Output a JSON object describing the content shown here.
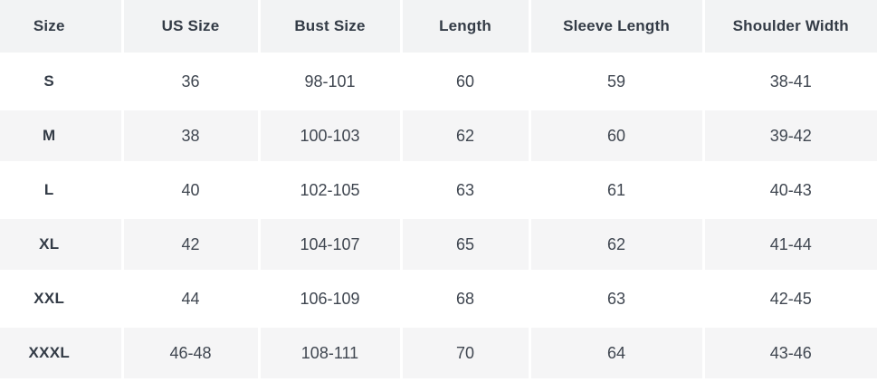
{
  "chart_data": {
    "type": "table",
    "columns": [
      "Size",
      "US Size",
      "Bust Size",
      "Length",
      "Sleeve Length",
      "Shoulder Width"
    ],
    "rows": [
      [
        "S",
        "36",
        "98-101",
        "60",
        "59",
        "38-41"
      ],
      [
        "M",
        "38",
        "100-103",
        "62",
        "60",
        "39-42"
      ],
      [
        "L",
        "40",
        "102-105",
        "63",
        "61",
        "40-43"
      ],
      [
        "XL",
        "42",
        "104-107",
        "65",
        "62",
        "41-44"
      ],
      [
        "XXL",
        "44",
        "106-109",
        "68",
        "63",
        "42-45"
      ],
      [
        "XXXL",
        "46-48",
        "108-111",
        "70",
        "64",
        "43-46"
      ]
    ],
    "layout": {
      "header_row_shaded": true,
      "alternating_row_shading": "rows M, XL, XXXL shaded; S, L, XXL white",
      "gridlines": "white gaps between cells",
      "text_alignment": "center"
    }
  },
  "colors": {
    "header_bg": "#f2f3f4",
    "row_bg": "#ffffff",
    "row_alt_bg": "#f5f5f6",
    "gap": "#ffffff",
    "text_dark": "#333b46",
    "text_data": "#3f4650"
  }
}
